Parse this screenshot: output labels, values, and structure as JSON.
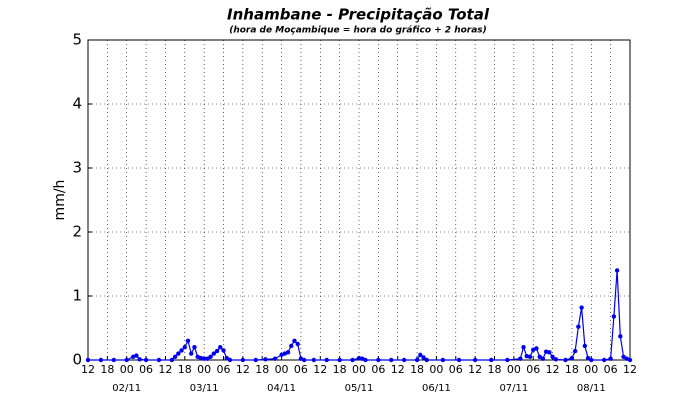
{
  "chart_data": {
    "type": "line",
    "title": "Inhambane - Precipitação Total",
    "subtitle": "(hora de Moçambique = hora do gráfico + 2 horas)",
    "ylabel": "mm/h",
    "color": "#0000ee",
    "grid": true,
    "xlim": [
      0,
      168
    ],
    "ylim": [
      0,
      5
    ],
    "yticks": [
      0,
      1,
      2,
      3,
      4,
      5
    ],
    "xticks": [
      {
        "value": 0,
        "label": "12"
      },
      {
        "value": 6,
        "label": "18"
      },
      {
        "value": 12,
        "label": "00"
      },
      {
        "value": 18,
        "label": "06"
      },
      {
        "value": 24,
        "label": "12"
      },
      {
        "value": 30,
        "label": "18"
      },
      {
        "value": 36,
        "label": "00"
      },
      {
        "value": 42,
        "label": "06"
      },
      {
        "value": 48,
        "label": "12"
      },
      {
        "value": 54,
        "label": "18"
      },
      {
        "value": 60,
        "label": "00"
      },
      {
        "value": 66,
        "label": "06"
      },
      {
        "value": 72,
        "label": "12"
      },
      {
        "value": 78,
        "label": "18"
      },
      {
        "value": 84,
        "label": "00"
      },
      {
        "value": 90,
        "label": "06"
      },
      {
        "value": 96,
        "label": "12"
      },
      {
        "value": 102,
        "label": "18"
      },
      {
        "value": 108,
        "label": "00"
      },
      {
        "value": 114,
        "label": "06"
      },
      {
        "value": 120,
        "label": "12"
      },
      {
        "value": 126,
        "label": "18"
      },
      {
        "value": 132,
        "label": "00"
      },
      {
        "value": 138,
        "label": "06"
      },
      {
        "value": 144,
        "label": "12"
      },
      {
        "value": 150,
        "label": "18"
      },
      {
        "value": 156,
        "label": "00"
      },
      {
        "value": 162,
        "label": "06"
      },
      {
        "value": 168,
        "label": "12"
      }
    ],
    "date_labels": [
      {
        "value": 12,
        "label": "02/11"
      },
      {
        "value": 36,
        "label": "03/11"
      },
      {
        "value": 60,
        "label": "04/11"
      },
      {
        "value": 84,
        "label": "05/11"
      },
      {
        "value": 108,
        "label": "06/11"
      },
      {
        "value": 132,
        "label": "07/11"
      },
      {
        "value": 156,
        "label": "08/11"
      }
    ],
    "x": [
      0,
      4,
      8,
      12,
      14,
      15,
      16,
      18,
      22,
      26,
      27,
      28,
      29,
      30,
      31,
      32,
      33,
      34,
      35,
      36,
      37,
      38,
      39,
      40,
      41,
      42,
      43,
      44,
      48,
      52,
      55,
      58,
      60,
      61,
      62,
      63,
      64,
      65,
      66,
      67,
      70,
      74,
      78,
      82,
      84,
      85,
      86,
      90,
      94,
      98,
      102,
      103,
      104,
      105,
      110,
      115,
      120,
      125,
      130,
      134,
      135,
      136,
      137,
      138,
      139,
      140,
      141,
      142,
      143,
      144,
      145,
      148,
      150,
      151,
      152,
      153,
      154,
      155,
      156,
      160,
      162,
      163,
      164,
      165,
      166,
      167,
      168
    ],
    "values": [
      0,
      0,
      0,
      0,
      0.05,
      0.07,
      0.01,
      0,
      0,
      0,
      0.05,
      0.1,
      0.15,
      0.2,
      0.3,
      0.1,
      0.2,
      0.05,
      0.03,
      0.02,
      0.02,
      0.05,
      0.1,
      0.14,
      0.2,
      0.15,
      0.03,
      0,
      0,
      0,
      0.01,
      0.02,
      0.08,
      0.1,
      0.12,
      0.22,
      0.3,
      0.25,
      0.02,
      0,
      0,
      0,
      0,
      0,
      0.03,
      0.02,
      0,
      0,
      0,
      0,
      0,
      0.08,
      0.04,
      0,
      0,
      0,
      0,
      0,
      0,
      0.02,
      0.2,
      0.06,
      0.05,
      0.16,
      0.18,
      0.05,
      0.02,
      0.13,
      0.12,
      0.05,
      0.01,
      0,
      0.03,
      0.14,
      0.52,
      0.82,
      0.22,
      0.03,
      0,
      0,
      0.02,
      0.68,
      1.4,
      0.37,
      0.05,
      0.02,
      0
    ]
  }
}
